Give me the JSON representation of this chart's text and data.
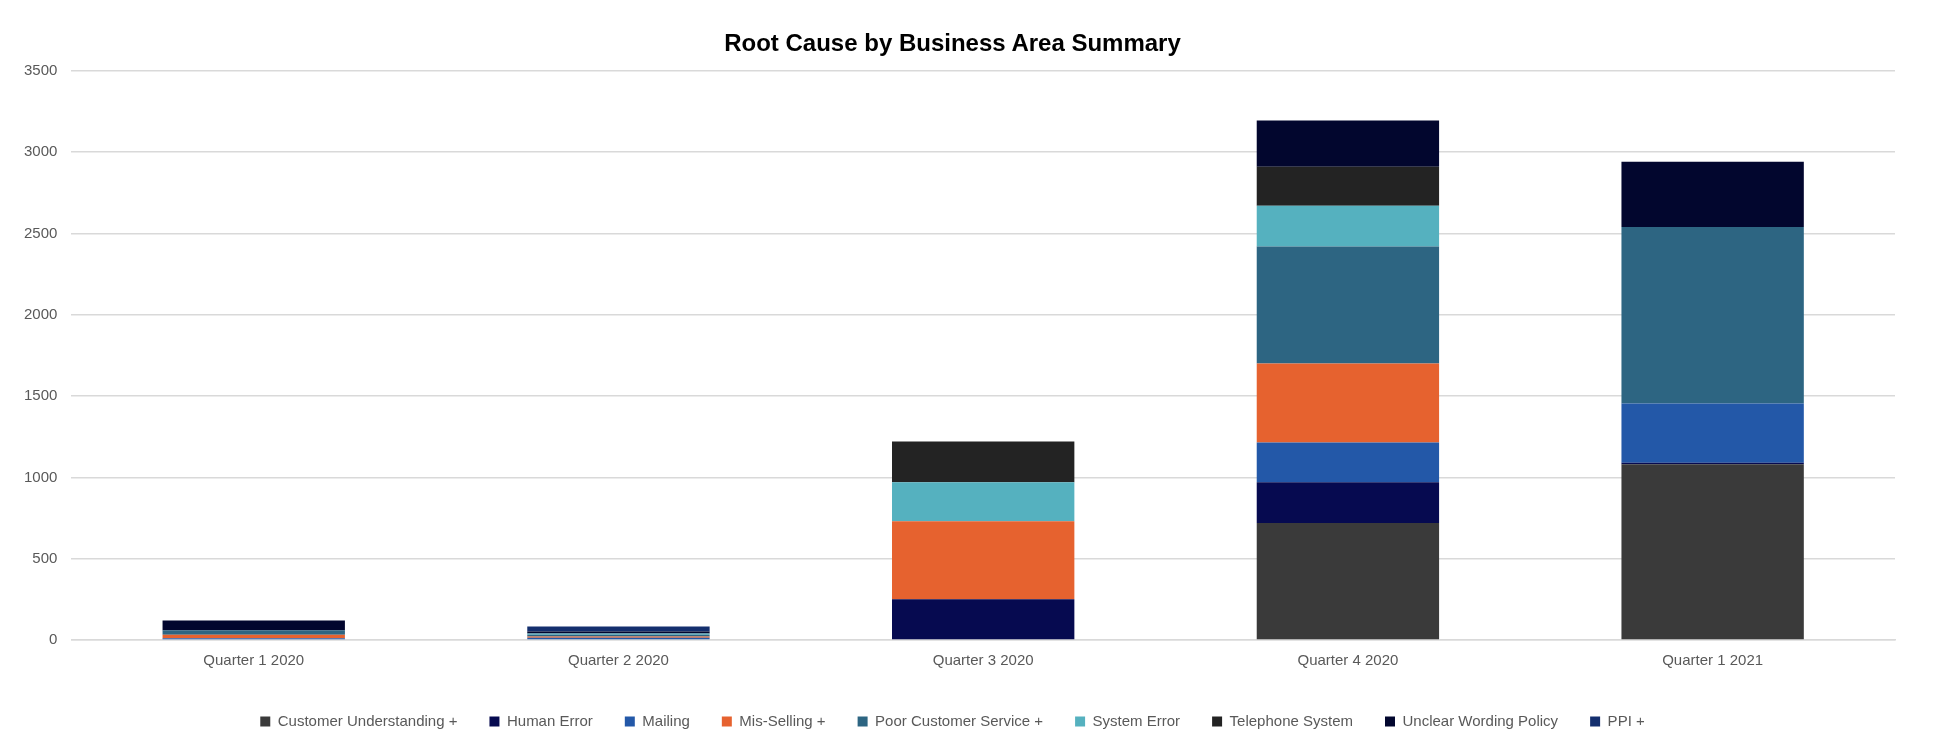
{
  "chart_data": {
    "type": "bar",
    "title": "Root Cause by Business Area Summary",
    "categories": [
      "Quarter 1 2020",
      "Quarter 2 2020",
      "Quarter 3 2020",
      "Quarter 4 2020",
      "Quarter 1 2021"
    ],
    "stacked": true,
    "ylim": [
      0,
      3500
    ],
    "yticks": [
      0,
      500,
      1000,
      1500,
      2000,
      2500,
      3000,
      3500
    ],
    "grid": "y",
    "legend": "bottom",
    "series": [
      {
        "name": "Customer Understanding +",
        "color": "#3a3a3a",
        "values": [
          0,
          0,
          0,
          720,
          1080
        ]
      },
      {
        "name": "Human Error",
        "color": "#060a50",
        "values": [
          0,
          0,
          250,
          250,
          10
        ]
      },
      {
        "name": "Mailing",
        "color": "#2358a8",
        "values": [
          10,
          14,
          0,
          245,
          365
        ]
      },
      {
        "name": "Mis-Selling +",
        "color": "#e6622f",
        "values": [
          22,
          8,
          480,
          485,
          0
        ]
      },
      {
        "name": "Poor Customer Service +",
        "color": "#2d6582",
        "values": [
          28,
          10,
          0,
          720,
          1085
        ]
      },
      {
        "name": "System Error",
        "color": "#55b1bf",
        "values": [
          0,
          8,
          240,
          250,
          0
        ]
      },
      {
        "name": "Telephone System",
        "color": "#232323",
        "values": [
          0,
          0,
          250,
          240,
          0
        ]
      },
      {
        "name": "Unclear Wording Policy",
        "color": "#02062e",
        "values": [
          60,
          13,
          0,
          285,
          400
        ]
      },
      {
        "name": "PPI +",
        "color": "#142f6e",
        "values": [
          0,
          30,
          0,
          0,
          0
        ]
      }
    ]
  }
}
